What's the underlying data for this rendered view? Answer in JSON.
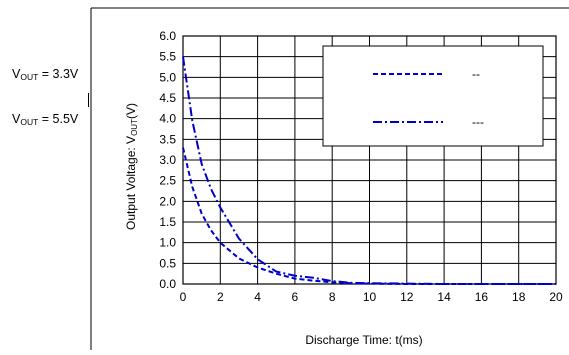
{
  "figure_labels": {
    "vout33_prefix": "V",
    "vout33_sub": "OUT",
    "vout33_suffix": " = 3.3V",
    "vout55_prefix": "V",
    "vout55_sub": "OUT",
    "vout55_suffix": " = 5.5V",
    "ylabel_prefix": "Output Voltage: V",
    "ylabel_sub": "OUT",
    "ylabel_suffix": "(V)"
  },
  "chart_data": {
    "type": "line",
    "title": "",
    "xlabel": "Discharge Time: t(ms)",
    "ylabel": "Output Voltage: VOUT(V)",
    "xlim": [
      0,
      20
    ],
    "ylim": [
      0,
      6
    ],
    "x_ticks": [
      "0",
      "2",
      "4",
      "6",
      "8",
      "10",
      "12",
      "14",
      "16",
      "18",
      "20"
    ],
    "y_ticks": [
      "0.0",
      "0.5",
      "1.0",
      "1.5",
      "2.0",
      "2.5",
      "3.0",
      "3.5",
      "4.0",
      "4.5",
      "5.0",
      "5.5",
      "6.0"
    ],
    "grid": true,
    "legend_position": "top-right",
    "series": [
      {
        "name": "--",
        "style": "dashed",
        "color": "#0000cc",
        "x": [
          0,
          0.5,
          1,
          1.5,
          2,
          3,
          4,
          5,
          6,
          7,
          8,
          9,
          10,
          12,
          14,
          16,
          18,
          20
        ],
        "y": [
          3.3,
          2.35,
          1.7,
          1.3,
          1.0,
          0.62,
          0.4,
          0.25,
          0.13,
          0.08,
          0.04,
          0.02,
          0.01,
          0.0,
          0.0,
          0.0,
          0.0,
          0.0
        ]
      },
      {
        "name": "---",
        "style": "dash-dot",
        "color": "#0000cc",
        "x": [
          0,
          0.5,
          1,
          1.5,
          2,
          3,
          4,
          5,
          6,
          7,
          8,
          9,
          10,
          12,
          14,
          16,
          18,
          20
        ],
        "y": [
          5.5,
          3.95,
          2.9,
          2.3,
          1.85,
          1.1,
          0.6,
          0.3,
          0.2,
          0.15,
          0.07,
          0.03,
          0.02,
          0.01,
          0.0,
          0.0,
          0.0,
          0.0
        ]
      }
    ]
  },
  "colors": {
    "series": "#0000cc",
    "grid": "#000000",
    "background": "#ffffff"
  }
}
